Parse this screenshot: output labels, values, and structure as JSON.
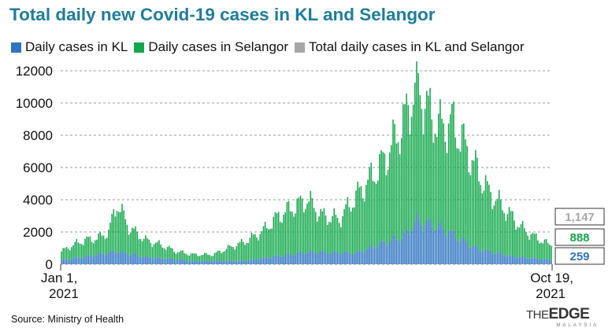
{
  "title": "Total daily new Covid-19 cases in KL and Selangor",
  "source": "Source: Ministry of Health",
  "brand": {
    "the": "THE",
    "edge": "EDGE",
    "sub": "MALAYSIA"
  },
  "colors": {
    "kl": "#2f74c0",
    "selangor": "#12a84b",
    "total": "#a7a7a7",
    "title": "#1e7d9b"
  },
  "chart_data": {
    "type": "bar",
    "stacked": true,
    "title": "Total daily new Covid-19 cases in KL and Selangor",
    "x_start": "Jan 1, 2021",
    "x_end": "Oct 19, 2021",
    "x_tick_labels": [
      {
        "line1": "Jan 1,",
        "line2": "2021"
      },
      {
        "line1": "Oct 19,",
        "line2": "2021"
      }
    ],
    "ylim": [
      0,
      12000
    ],
    "yticks": [
      0,
      2000,
      4000,
      6000,
      8000,
      10000,
      12000
    ],
    "grid": true,
    "legend": "top",
    "series": [
      {
        "name": "Daily cases in KL",
        "color": "#2f74c0"
      },
      {
        "name": "Daily cases in Selangor",
        "color": "#12a84b"
      },
      {
        "name": "Total daily cases in KL and Selangor",
        "color": "#a7a7a7"
      }
    ],
    "total_anchors": [
      [
        "2021-01-01",
        800
      ],
      [
        "2021-01-08",
        1200
      ],
      [
        "2021-01-15",
        1500
      ],
      [
        "2021-01-22",
        1600
      ],
      [
        "2021-01-29",
        2000
      ],
      [
        "2021-02-03",
        3800
      ],
      [
        "2021-02-10",
        2300
      ],
      [
        "2021-02-20",
        1500
      ],
      [
        "2021-03-01",
        1200
      ],
      [
        "2021-03-10",
        800
      ],
      [
        "2021-03-20",
        600
      ],
      [
        "2021-04-01",
        600
      ],
      [
        "2021-04-10",
        1000
      ],
      [
        "2021-04-20",
        1400
      ],
      [
        "2021-04-30",
        2000
      ],
      [
        "2021-05-10",
        3000
      ],
      [
        "2021-05-20",
        3600
      ],
      [
        "2021-05-27",
        4000
      ],
      [
        "2021-06-05",
        3000
      ],
      [
        "2021-06-15",
        2800
      ],
      [
        "2021-06-25",
        4200
      ],
      [
        "2021-07-05",
        5500
      ],
      [
        "2021-07-12",
        6500
      ],
      [
        "2021-07-18",
        7700
      ],
      [
        "2021-07-24",
        9000
      ],
      [
        "2021-07-31",
        11200
      ],
      [
        "2021-08-07",
        9500
      ],
      [
        "2021-08-14",
        8500
      ],
      [
        "2021-08-21",
        8800
      ],
      [
        "2021-08-28",
        7500
      ],
      [
        "2021-09-04",
        6000
      ],
      [
        "2021-09-11",
        4600
      ],
      [
        "2021-09-18",
        3800
      ],
      [
        "2021-09-25",
        3000
      ],
      [
        "2021-10-02",
        2200
      ],
      [
        "2021-10-09",
        1700
      ],
      [
        "2021-10-19",
        1147
      ]
    ],
    "kl_anchors": [
      [
        "2021-01-01",
        250
      ],
      [
        "2021-02-03",
        800
      ],
      [
        "2021-02-20",
        450
      ],
      [
        "2021-03-20",
        200
      ],
      [
        "2021-04-20",
        220
      ],
      [
        "2021-05-27",
        750
      ],
      [
        "2021-06-25",
        700
      ],
      [
        "2021-07-24",
        1800
      ],
      [
        "2021-07-31",
        2700
      ],
      [
        "2021-08-14",
        2300
      ],
      [
        "2021-09-04",
        1000
      ],
      [
        "2021-09-25",
        500
      ],
      [
        "2021-10-19",
        259
      ]
    ],
    "callouts": [
      {
        "series": "Total daily cases in KL and Selangor",
        "value": 1147,
        "label": "1,147"
      },
      {
        "series": "Daily cases in Selangor",
        "value": 888,
        "label": "888"
      },
      {
        "series": "Daily cases in KL",
        "value": 259,
        "label": "259"
      }
    ]
  }
}
